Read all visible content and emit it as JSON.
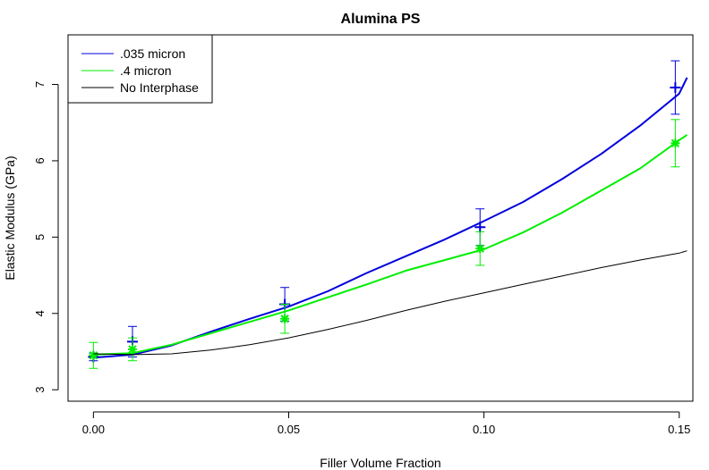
{
  "chart_data": {
    "type": "line",
    "title": "Alumina PS",
    "xlabel": "Filler Volume Fraction",
    "ylabel": "Elastic Modulus (GPa)",
    "xlim": [
      -0.0065,
      0.1535
    ],
    "ylim": [
      2.85,
      7.65
    ],
    "x_ticks": [
      0.0,
      0.05,
      0.1,
      0.15
    ],
    "x_tick_labels": [
      "0.00",
      "0.05",
      "0.10",
      "0.15"
    ],
    "y_ticks": [
      3,
      4,
      5,
      6,
      7
    ],
    "y_tick_labels": [
      "3",
      "4",
      "5",
      "6",
      "7"
    ],
    "legend_position": "top-left",
    "series": [
      {
        "name": ".035 micron",
        "color": "#0000dd",
        "line_x": [
          0.0,
          0.01,
          0.02,
          0.03,
          0.04,
          0.05,
          0.06,
          0.07,
          0.08,
          0.09,
          0.1,
          0.11,
          0.12,
          0.13,
          0.14,
          0.15,
          0.152
        ],
        "line_y": [
          3.42,
          3.46,
          3.58,
          3.76,
          3.93,
          4.09,
          4.29,
          4.53,
          4.75,
          4.97,
          5.21,
          5.46,
          5.76,
          6.09,
          6.46,
          6.88,
          7.09
        ],
        "points": [
          {
            "x": 0.0,
            "y": 3.43,
            "err": 0.05
          },
          {
            "x": 0.01,
            "y": 3.63,
            "err": 0.2
          },
          {
            "x": 0.049,
            "y": 4.12,
            "err": 0.22
          },
          {
            "x": 0.099,
            "y": 5.13,
            "err": 0.24
          },
          {
            "x": 0.149,
            "y": 6.96,
            "err": 0.35
          }
        ]
      },
      {
        "name": ".4 micron",
        "color": "#00ee00",
        "line_x": [
          0.0,
          0.01,
          0.02,
          0.03,
          0.04,
          0.05,
          0.06,
          0.07,
          0.08,
          0.09,
          0.1,
          0.11,
          0.12,
          0.13,
          0.14,
          0.15,
          0.152
        ],
        "line_y": [
          3.46,
          3.48,
          3.59,
          3.74,
          3.89,
          4.04,
          4.21,
          4.38,
          4.56,
          4.7,
          4.84,
          5.06,
          5.32,
          5.61,
          5.9,
          6.27,
          6.34
        ],
        "points": [
          {
            "x": 0.0,
            "y": 3.45,
            "err": 0.17
          },
          {
            "x": 0.01,
            "y": 3.53,
            "err": 0.15
          },
          {
            "x": 0.049,
            "y": 3.93,
            "err": 0.19
          },
          {
            "x": 0.099,
            "y": 4.85,
            "err": 0.22
          },
          {
            "x": 0.149,
            "y": 6.23,
            "err": 0.31
          }
        ]
      },
      {
        "name": "No Interphase",
        "color": "#000000",
        "line_x": [
          0.0,
          0.01,
          0.02,
          0.03,
          0.04,
          0.05,
          0.06,
          0.07,
          0.08,
          0.09,
          0.1,
          0.11,
          0.12,
          0.13,
          0.14,
          0.15,
          0.152
        ],
        "line_y": [
          3.47,
          3.46,
          3.47,
          3.52,
          3.59,
          3.68,
          3.79,
          3.91,
          4.04,
          4.16,
          4.27,
          4.38,
          4.49,
          4.6,
          4.7,
          4.79,
          4.82
        ],
        "points": []
      }
    ]
  }
}
